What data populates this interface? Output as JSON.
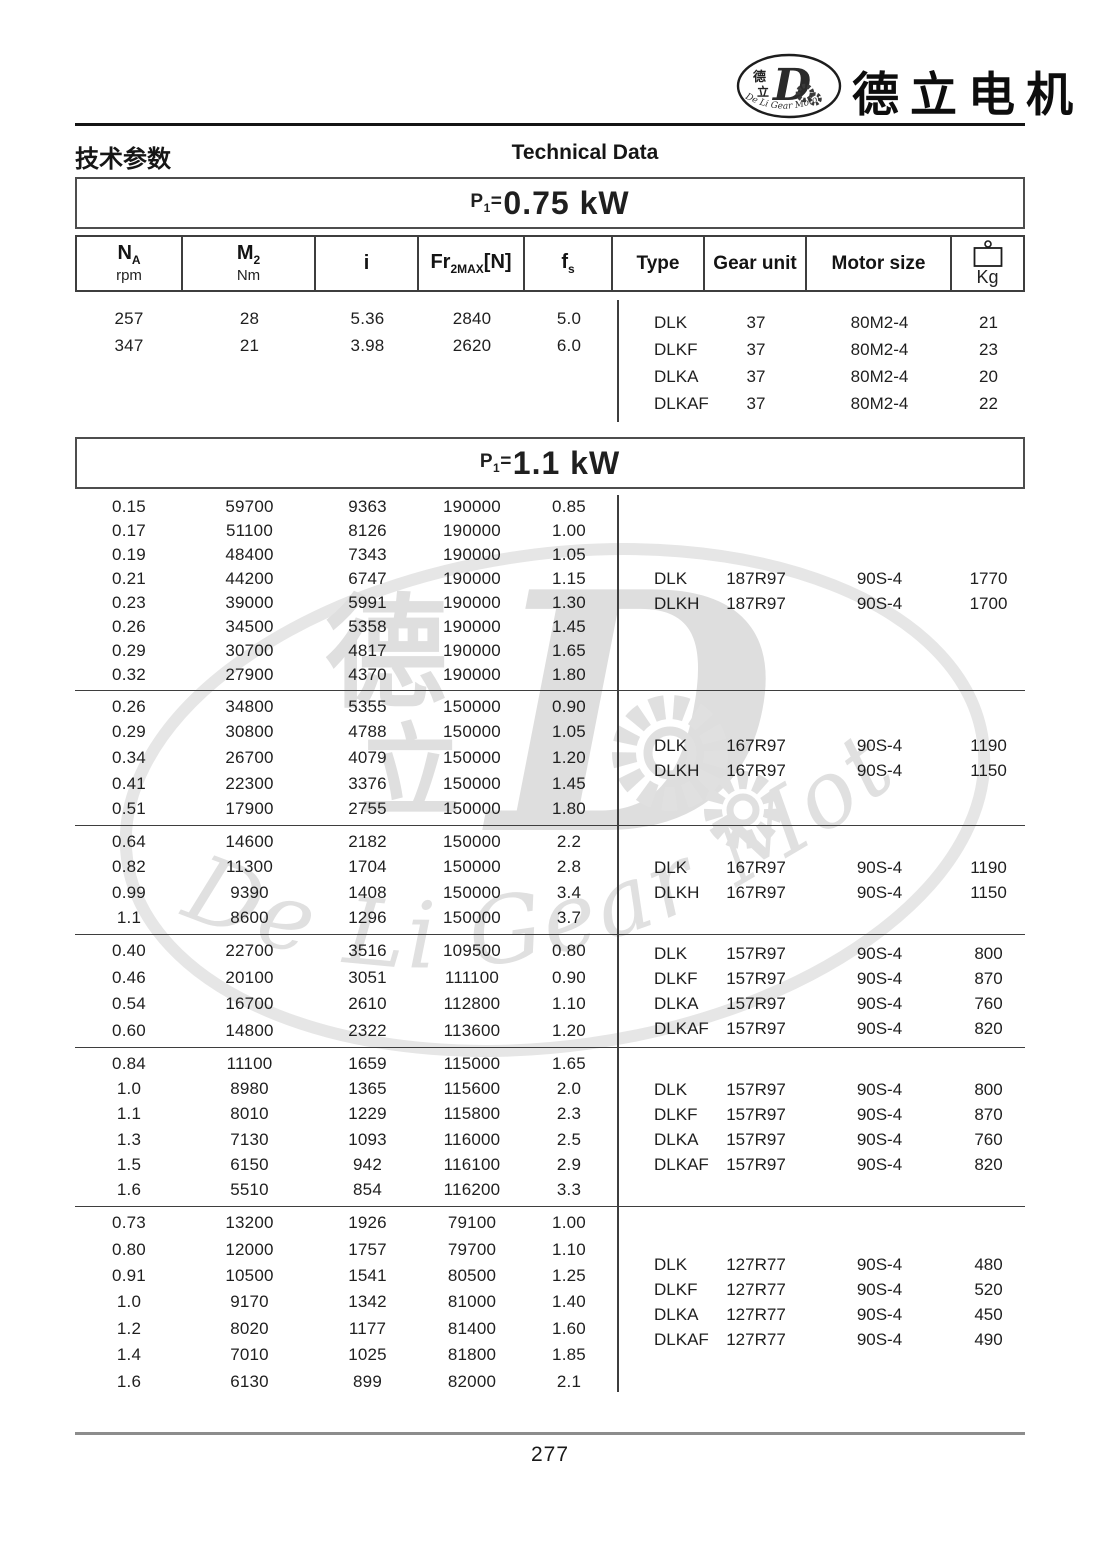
{
  "brand": {
    "name": "德立电机",
    "logo_chars_top": "德",
    "logo_chars_bottom": "立",
    "logo_letter": "D",
    "logo_ring_text": "De Li Gear Motor"
  },
  "page_header": {
    "title_zh": "技术参数",
    "title_en": "Technical Data"
  },
  "table_header": {
    "columns": [
      {
        "main": "N",
        "sub": "A",
        "unit": "rpm"
      },
      {
        "main": "M",
        "sub": "2",
        "unit": "Nm"
      },
      {
        "main": "i"
      },
      {
        "main": "Fr",
        "sub": "2MAX",
        "suffix": "[N]"
      },
      {
        "main": "f",
        "sub": "s"
      },
      {
        "label": "Type"
      },
      {
        "label": "Gear unit"
      },
      {
        "label": "Motor size"
      },
      {
        "icon": "weight-icon",
        "label": "Kg"
      }
    ]
  },
  "sections": [
    {
      "id": "s075",
      "power_prefix": "P",
      "power_sub": "1",
      "power_eq": "=",
      "power_value": "0.75 kW",
      "groups": [
        {
          "left_rows": [
            [
              "257",
              "28",
              "5.36",
              "2840",
              "5.0"
            ],
            [
              "347",
              "21",
              "3.98",
              "2620",
              "6.0"
            ]
          ],
          "right_rows": [
            [
              "DLK",
              "37",
              "80M2-4",
              "21"
            ],
            [
              "DLKF",
              "37",
              "80M2-4",
              "23"
            ],
            [
              "DLKA",
              "37",
              "80M2-4",
              "20"
            ],
            [
              "DLKAF",
              "37",
              "80M2-4",
              "22"
            ]
          ]
        }
      ]
    },
    {
      "id": "s11",
      "power_prefix": "P",
      "power_sub": "1",
      "power_eq": "=",
      "power_value": "1.1 kW",
      "groups": [
        {
          "left_rows": [
            [
              "0.15",
              "59700",
              "9363",
              "190000",
              "0.85"
            ],
            [
              "0.17",
              "51100",
              "8126",
              "190000",
              "1.00"
            ],
            [
              "0.19",
              "48400",
              "7343",
              "190000",
              "1.05"
            ],
            [
              "0.21",
              "44200",
              "6747",
              "190000",
              "1.15"
            ],
            [
              "0.23",
              "39000",
              "5991",
              "190000",
              "1.30"
            ],
            [
              "0.26",
              "34500",
              "5358",
              "190000",
              "1.45"
            ],
            [
              "0.29",
              "30700",
              "4817",
              "190000",
              "1.65"
            ],
            [
              "0.32",
              "27900",
              "4370",
              "190000",
              "1.80"
            ]
          ],
          "right_rows": [
            [
              "DLK",
              "187R97",
              "90S-4",
              "1770"
            ],
            [
              "DLKH",
              "187R97",
              "90S-4",
              "1700"
            ]
          ]
        },
        {
          "left_rows": [
            [
              "0.26",
              "34800",
              "5355",
              "150000",
              "0.90"
            ],
            [
              "0.29",
              "30800",
              "4788",
              "150000",
              "1.05"
            ],
            [
              "0.34",
              "26700",
              "4079",
              "150000",
              "1.20"
            ],
            [
              "0.41",
              "22300",
              "3376",
              "150000",
              "1.45"
            ],
            [
              "0.51",
              "17900",
              "2755",
              "150000",
              "1.80"
            ]
          ],
          "right_rows": [
            [
              "DLK",
              "167R97",
              "90S-4",
              "1190"
            ],
            [
              "DLKH",
              "167R97",
              "90S-4",
              "1150"
            ]
          ]
        },
        {
          "left_rows": [
            [
              "0.64",
              "14600",
              "2182",
              "150000",
              "2.2"
            ],
            [
              "0.82",
              "11300",
              "1704",
              "150000",
              "2.8"
            ],
            [
              "0.99",
              "9390",
              "1408",
              "150000",
              "3.4"
            ],
            [
              "1.1",
              "8600",
              "1296",
              "150000",
              "3.7"
            ]
          ],
          "right_rows": [
            [
              "DLK",
              "167R97",
              "90S-4",
              "1190"
            ],
            [
              "DLKH",
              "167R97",
              "90S-4",
              "1150"
            ]
          ]
        },
        {
          "left_rows": [
            [
              "0.40",
              "22700",
              "3516",
              "109500",
              "0.80"
            ],
            [
              "0.46",
              "20100",
              "3051",
              "111100",
              "0.90"
            ],
            [
              "0.54",
              "16700",
              "2610",
              "112800",
              "1.10"
            ],
            [
              "0.60",
              "14800",
              "2322",
              "113600",
              "1.20"
            ]
          ],
          "right_rows": [
            [
              "DLK",
              "157R97",
              "90S-4",
              "800"
            ],
            [
              "DLKF",
              "157R97",
              "90S-4",
              "870"
            ],
            [
              "DLKA",
              "157R97",
              "90S-4",
              "760"
            ],
            [
              "DLKAF",
              "157R97",
              "90S-4",
              "820"
            ]
          ]
        },
        {
          "left_rows": [
            [
              "0.84",
              "11100",
              "1659",
              "115000",
              "1.65"
            ],
            [
              "1.0",
              "8980",
              "1365",
              "115600",
              "2.0"
            ],
            [
              "1.1",
              "8010",
              "1229",
              "115800",
              "2.3"
            ],
            [
              "1.3",
              "7130",
              "1093",
              "116000",
              "2.5"
            ],
            [
              "1.5",
              "6150",
              "942",
              "116100",
              "2.9"
            ],
            [
              "1.6",
              "5510",
              "854",
              "116200",
              "3.3"
            ]
          ],
          "right_rows": [
            [
              "DLK",
              "157R97",
              "90S-4",
              "800"
            ],
            [
              "DLKF",
              "157R97",
              "90S-4",
              "870"
            ],
            [
              "DLKA",
              "157R97",
              "90S-4",
              "760"
            ],
            [
              "DLKAF",
              "157R97",
              "90S-4",
              "820"
            ]
          ]
        },
        {
          "left_rows": [
            [
              "0.73",
              "13200",
              "1926",
              "79100",
              "1.00"
            ],
            [
              "0.80",
              "12000",
              "1757",
              "79700",
              "1.10"
            ],
            [
              "0.91",
              "10500",
              "1541",
              "80500",
              "1.25"
            ],
            [
              "1.0",
              "9170",
              "1342",
              "81000",
              "1.40"
            ],
            [
              "1.2",
              "8020",
              "1177",
              "81400",
              "1.60"
            ],
            [
              "1.4",
              "7010",
              "1025",
              "81800",
              "1.85"
            ],
            [
              "1.6",
              "6130",
              "899",
              "82000",
              "2.1"
            ]
          ],
          "right_rows": [
            [
              "DLK",
              "127R77",
              "90S-4",
              "480"
            ],
            [
              "DLKF",
              "127R77",
              "90S-4",
              "520"
            ],
            [
              "DLKA",
              "127R77",
              "90S-4",
              "450"
            ],
            [
              "DLKAF",
              "127R77",
              "90S-4",
              "490"
            ]
          ]
        }
      ]
    }
  ],
  "watermark": {
    "script_text": "De Li Gear Motor",
    "char_top": "德",
    "char_bottom": "立",
    "letter": "D"
  },
  "footer": {
    "page_number": "277"
  },
  "colors": {
    "text": "#1f1f1f",
    "border_dark": "#3e3e3e",
    "rule_top": "#141414",
    "rule_bottom": "#8c8c8c",
    "watermark": "#e0e0e0"
  }
}
